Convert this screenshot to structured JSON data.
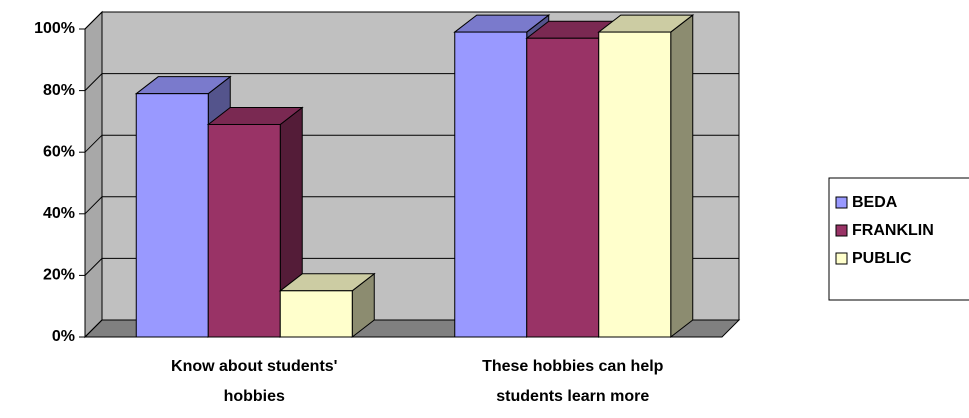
{
  "chart_data": {
    "type": "bar3d",
    "categories": [
      "Know about students' hobbies",
      "These hobbies can help students learn more"
    ],
    "series": [
      {
        "name": "BEDA",
        "color": "#9999ff",
        "values": [
          79,
          99
        ]
      },
      {
        "name": "FRANKLIN",
        "color": "#993366",
        "values": [
          69,
          97
        ]
      },
      {
        "name": "PUBLIC",
        "color": "#ffffcc",
        "values": [
          15,
          99
        ]
      }
    ],
    "ylim": [
      0,
      100
    ],
    "yticks": [
      {
        "value": 0,
        "label": "0%"
      },
      {
        "value": 20,
        "label": "20%"
      },
      {
        "value": 40,
        "label": "40%"
      },
      {
        "value": 60,
        "label": "60%"
      },
      {
        "value": 80,
        "label": "80%"
      },
      {
        "value": 100,
        "label": "100%"
      }
    ],
    "grid": true,
    "legend": "right"
  }
}
